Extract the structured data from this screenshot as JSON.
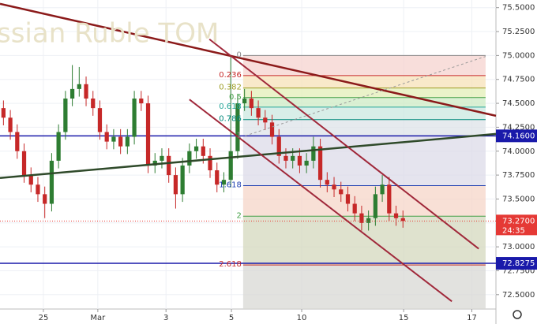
{
  "chart_data": {
    "type": "candlestick",
    "title": "ssian Ruble TOM",
    "ylim": [
      72.35,
      75.58
    ],
    "xlim": [
      0,
      72
    ],
    "yticks": [
      {
        "value": 72.5,
        "label": "72.5000"
      },
      {
        "value": 72.75,
        "label": "72.7500"
      },
      {
        "value": 73.0,
        "label": "73.0000"
      },
      {
        "value": 73.25,
        "label": "73.2500"
      },
      {
        "value": 73.5,
        "label": "73.5000"
      },
      {
        "value": 73.75,
        "label": "73.7500"
      },
      {
        "value": 74.0,
        "label": "74.0000"
      },
      {
        "value": 74.25,
        "label": "74.2500"
      },
      {
        "value": 74.5,
        "label": "74.5000"
      },
      {
        "value": 74.75,
        "label": "74.7500"
      },
      {
        "value": 75.0,
        "label": "75.0000"
      },
      {
        "value": 75.25,
        "label": "75.2500"
      },
      {
        "value": 75.5,
        "label": "75.5000"
      }
    ],
    "xticks": [
      {
        "value": 6.3,
        "label": "25"
      },
      {
        "value": 14.2,
        "label": "Mar"
      },
      {
        "value": 24.1,
        "label": "3"
      },
      {
        "value": 33.6,
        "label": "5"
      },
      {
        "value": 43.8,
        "label": "10"
      },
      {
        "value": 58.6,
        "label": "15"
      },
      {
        "value": 68.5,
        "label": "17"
      }
    ],
    "grid": true,
    "up_color": "#2e7d32",
    "down_color": "#c62828",
    "open": [
      74.45,
      74.35,
      74.2,
      74.0,
      73.75,
      73.65,
      73.55,
      73.45,
      73.9,
      74.2,
      74.55,
      74.65,
      74.7,
      74.55,
      74.45,
      74.2,
      74.1,
      74.15,
      74.05,
      74.15,
      74.55,
      74.5,
      73.85,
      73.9,
      73.95,
      73.75,
      73.55,
      73.85,
      74.0,
      74.05,
      73.95,
      73.8,
      73.65,
      73.7,
      74.0,
      74.5,
      74.55,
      74.45,
      74.35,
      74.3,
      74.15,
      73.95,
      73.9,
      73.95,
      73.85,
      73.9,
      74.05,
      73.7,
      73.65,
      73.6,
      73.55,
      73.45,
      73.35,
      73.25,
      73.3,
      73.55,
      73.65,
      73.35,
      73.3
    ],
    "high": [
      74.53,
      74.43,
      74.28,
      74.08,
      73.83,
      73.73,
      73.63,
      73.98,
      74.28,
      74.63,
      74.9,
      74.88,
      74.78,
      74.63,
      74.53,
      74.28,
      74.23,
      74.23,
      74.23,
      74.63,
      74.63,
      74.58,
      73.98,
      74.03,
      74.03,
      73.83,
      73.93,
      74.08,
      74.13,
      74.13,
      74.03,
      73.88,
      73.78,
      75.0,
      74.6,
      74.65,
      74.63,
      74.53,
      74.43,
      74.38,
      74.23,
      74.03,
      74.03,
      74.03,
      73.98,
      74.15,
      74.13,
      73.78,
      73.73,
      73.68,
      73.63,
      73.53,
      73.43,
      73.38,
      73.63,
      73.75,
      73.73,
      73.43,
      73.38
    ],
    "low": [
      74.27,
      74.12,
      73.92,
      73.67,
      73.57,
      73.47,
      73.3,
      73.37,
      73.82,
      74.12,
      74.47,
      74.57,
      74.47,
      74.37,
      74.12,
      74.02,
      74.02,
      73.97,
      73.97,
      74.07,
      74.42,
      73.77,
      73.77,
      73.82,
      73.67,
      73.4,
      73.47,
      73.77,
      73.92,
      73.87,
      73.72,
      73.57,
      73.57,
      73.62,
      73.92,
      74.42,
      74.37,
      74.27,
      74.22,
      74.07,
      73.87,
      73.82,
      73.82,
      73.77,
      73.77,
      73.82,
      73.62,
      73.57,
      73.52,
      73.47,
      73.37,
      73.27,
      73.17,
      73.17,
      73.22,
      73.47,
      73.27,
      73.22,
      73.2
    ],
    "close": [
      74.35,
      74.2,
      74.0,
      73.75,
      73.65,
      73.55,
      73.45,
      73.9,
      74.2,
      74.55,
      74.65,
      74.7,
      74.55,
      74.45,
      74.2,
      74.1,
      74.15,
      74.05,
      74.15,
      74.55,
      74.5,
      73.85,
      73.9,
      73.95,
      73.75,
      73.55,
      73.85,
      74.0,
      74.05,
      73.95,
      73.8,
      73.65,
      73.7,
      74.0,
      74.5,
      74.55,
      74.45,
      74.35,
      74.3,
      74.15,
      73.95,
      73.9,
      73.95,
      73.85,
      73.9,
      74.05,
      73.7,
      73.65,
      73.6,
      73.55,
      73.45,
      73.35,
      73.25,
      73.3,
      73.55,
      73.65,
      73.35,
      73.3,
      73.27
    ],
    "fib": {
      "xlim": [
        35.3,
        70.5
      ],
      "levels": [
        {
          "label": "0",
          "value": 75.0,
          "color": "#888888",
          "fill": "#f6d3cf"
        },
        {
          "label": "0.236",
          "value": 74.79,
          "color": "#c62828",
          "fill": "#f7e2b8"
        },
        {
          "label": "0.382",
          "value": 74.66,
          "color": "#9e9d24",
          "fill": "#e3efb7"
        },
        {
          "label": "0.5",
          "value": 74.56,
          "color": "#43a047",
          "fill": "#cdebc4"
        },
        {
          "label": "0.618",
          "value": 74.46,
          "color": "#26a69a",
          "fill": "#cbe8e0"
        },
        {
          "label": "0.786",
          "value": 74.33,
          "color": "#00897b",
          "fill": "#dde3e8"
        },
        {
          "label": "1",
          "value": 74.16,
          "color": "#888888",
          "fill": "#dcdbe8"
        },
        {
          "label": "1.618",
          "value": 73.64,
          "color": "#1e3fb0",
          "fill": "#f5d5c8"
        },
        {
          "label": "2",
          "value": 73.32,
          "color": "#43a047",
          "fill": "#d4d8bd"
        },
        {
          "label": "2.618",
          "value": 72.81,
          "color": "#c62828",
          "fill": "#d8d8d4"
        }
      ]
    },
    "trend_lines": [
      {
        "x": [
          0,
          72
        ],
        "values": [
          75.54,
          74.37
        ],
        "color": "#8b1a1a",
        "width": 2.5
      },
      {
        "x": [
          0,
          72
        ],
        "values": [
          73.72,
          74.18
        ],
        "color": "#2f4a2a",
        "width": 2.5
      },
      {
        "x": [
          30.4,
          69.5
        ],
        "values": [
          75.17,
          72.98
        ],
        "color": "#a0283a",
        "width": 2
      },
      {
        "x": [
          27.5,
          65.6
        ],
        "values": [
          74.54,
          72.43
        ],
        "color": "#a0283a",
        "width": 2
      },
      {
        "x": [
          35.6,
          70.5
        ],
        "values": [
          74.16,
          74.99
        ],
        "color": "#999999",
        "width": 1,
        "dash": "3,3"
      }
    ],
    "levels": [
      {
        "value": 74.16,
        "label": "74.1600",
        "color": "#1a1aaa"
      },
      {
        "value": 72.8275,
        "label": "72.8275",
        "color": "#1a1aaa"
      }
    ],
    "last_price": {
      "value": 73.27,
      "label": "73.2700",
      "countdown": "24:35",
      "color": "#e53935"
    }
  }
}
